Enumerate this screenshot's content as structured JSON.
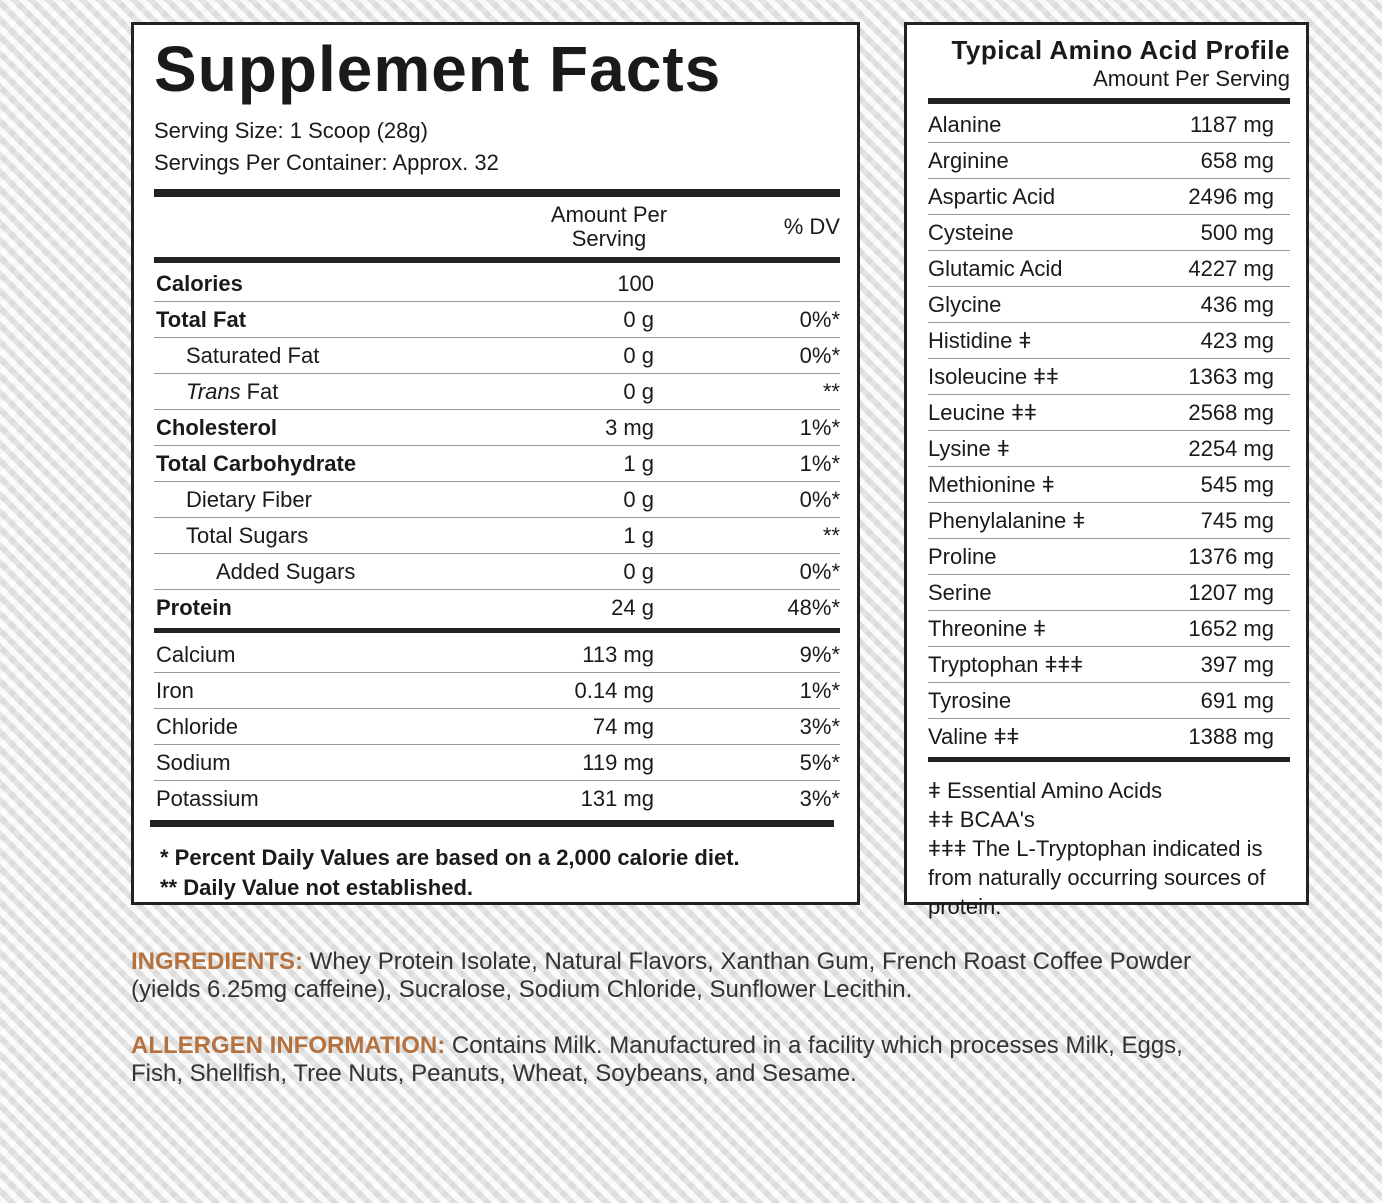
{
  "supplement_facts": {
    "title": "Supplement Facts",
    "serving_size": "Serving Size: 1 Scoop (28g)",
    "servings_per_container": "Servings Per Container: Approx. 32",
    "header": {
      "amount": "Amount Per Serving",
      "dv": "% DV"
    },
    "nutrients": [
      {
        "name": "Calories",
        "amount": "100"
      },
      {
        "name": "Total Fat",
        "amount": "0 g",
        "dv": "0%*",
        "subitems": [
          {
            "name": "Saturated Fat",
            "amount": "0 g",
            "dv": "0%*"
          },
          {
            "name_prefix": "Trans",
            "name": "Fat",
            "amount": "0 g",
            "dv": "**"
          }
        ]
      },
      {
        "name": "Cholesterol",
        "amount": "3 mg",
        "dv": "1%*"
      },
      {
        "name": "Total Carbohydrate",
        "amount": "1 g",
        "dv": "1%*",
        "subitems": [
          {
            "name": "Dietary Fiber",
            "amount": "0 g",
            "dv": "0%*"
          },
          {
            "name": "Total Sugars",
            "amount": "1 g",
            "dv": "**",
            "subitems": [
              {
                "name": "Added Sugars",
                "amount": "0 g",
                "dv": "0%*"
              }
            ]
          }
        ]
      },
      {
        "name": "Protein",
        "amount": "24 g",
        "dv": "48%*"
      }
    ],
    "minerals": [
      {
        "name": "Calcium",
        "amount": "113 mg",
        "dv": "9%*"
      },
      {
        "name": "Iron",
        "amount": "0.14 mg",
        "dv": "1%*"
      },
      {
        "name": "Chloride",
        "amount": "74 mg",
        "dv": "3%*"
      },
      {
        "name": "Sodium",
        "amount": "119 mg",
        "dv": "5%*"
      },
      {
        "name": "Potassium",
        "amount": "131 mg",
        "dv": "3%*"
      }
    ],
    "footnotes": [
      "* Percent Daily Values are based on a 2,000 calorie diet.",
      "** Daily Value not established."
    ]
  },
  "amino_acid_profile": {
    "title": "Typical Amino Acid Profile",
    "subtitle": "Amount Per Serving",
    "rows": [
      {
        "name": "Alanine",
        "amount": "1187 mg"
      },
      {
        "name": "Arginine",
        "amount": "658 mg"
      },
      {
        "name": "Aspartic Acid",
        "amount": "2496 mg"
      },
      {
        "name": "Cysteine",
        "amount": "500 mg"
      },
      {
        "name": "Glutamic Acid",
        "amount": "4227 mg"
      },
      {
        "name": "Glycine",
        "amount": "436 mg"
      },
      {
        "name": "Histidine ǂ",
        "amount": "423 mg"
      },
      {
        "name": "Isoleucine ǂǂ",
        "amount": "1363 mg"
      },
      {
        "name": "Leucine ǂǂ",
        "amount": "2568 mg"
      },
      {
        "name": "Lysine ǂ",
        "amount": "2254 mg"
      },
      {
        "name": "Methionine ǂ",
        "amount": "545 mg"
      },
      {
        "name": "Phenylalanine ǂ",
        "amount": "745 mg"
      },
      {
        "name": "Proline",
        "amount": "1376 mg"
      },
      {
        "name": "Serine",
        "amount": "1207 mg"
      },
      {
        "name": "Threonine ǂ",
        "amount": "1652 mg"
      },
      {
        "name": "Tryptophan ǂǂǂ",
        "amount": "397 mg"
      },
      {
        "name": "Tyrosine",
        "amount": "691 mg"
      },
      {
        "name": "Valine ǂǂ",
        "amount": "1388 mg"
      }
    ],
    "footnotes": [
      "ǂ Essential Amino Acids",
      "ǂǂ BCAA's",
      "ǂǂǂ The L-Tryptophan indicated is from naturally occurring sources of protein."
    ]
  },
  "ingredients": {
    "label": "INGREDIENTS:",
    "text": "Whey Protein Isolate, Natural Flavors, Xanthan Gum, French Roast Coffee Powder (yields 6.25mg caffeine), Sucralose, Sodium Chloride, Sunflower Lecithin."
  },
  "allergen_information": {
    "label": "ALLERGEN INFORMATION:",
    "text": "Contains Milk. Manufactured in a facility which processes Milk, Eggs, Fish, Shellfish, Tree Nuts, Peanuts, Wheat, Soybeans, and Sesame."
  }
}
